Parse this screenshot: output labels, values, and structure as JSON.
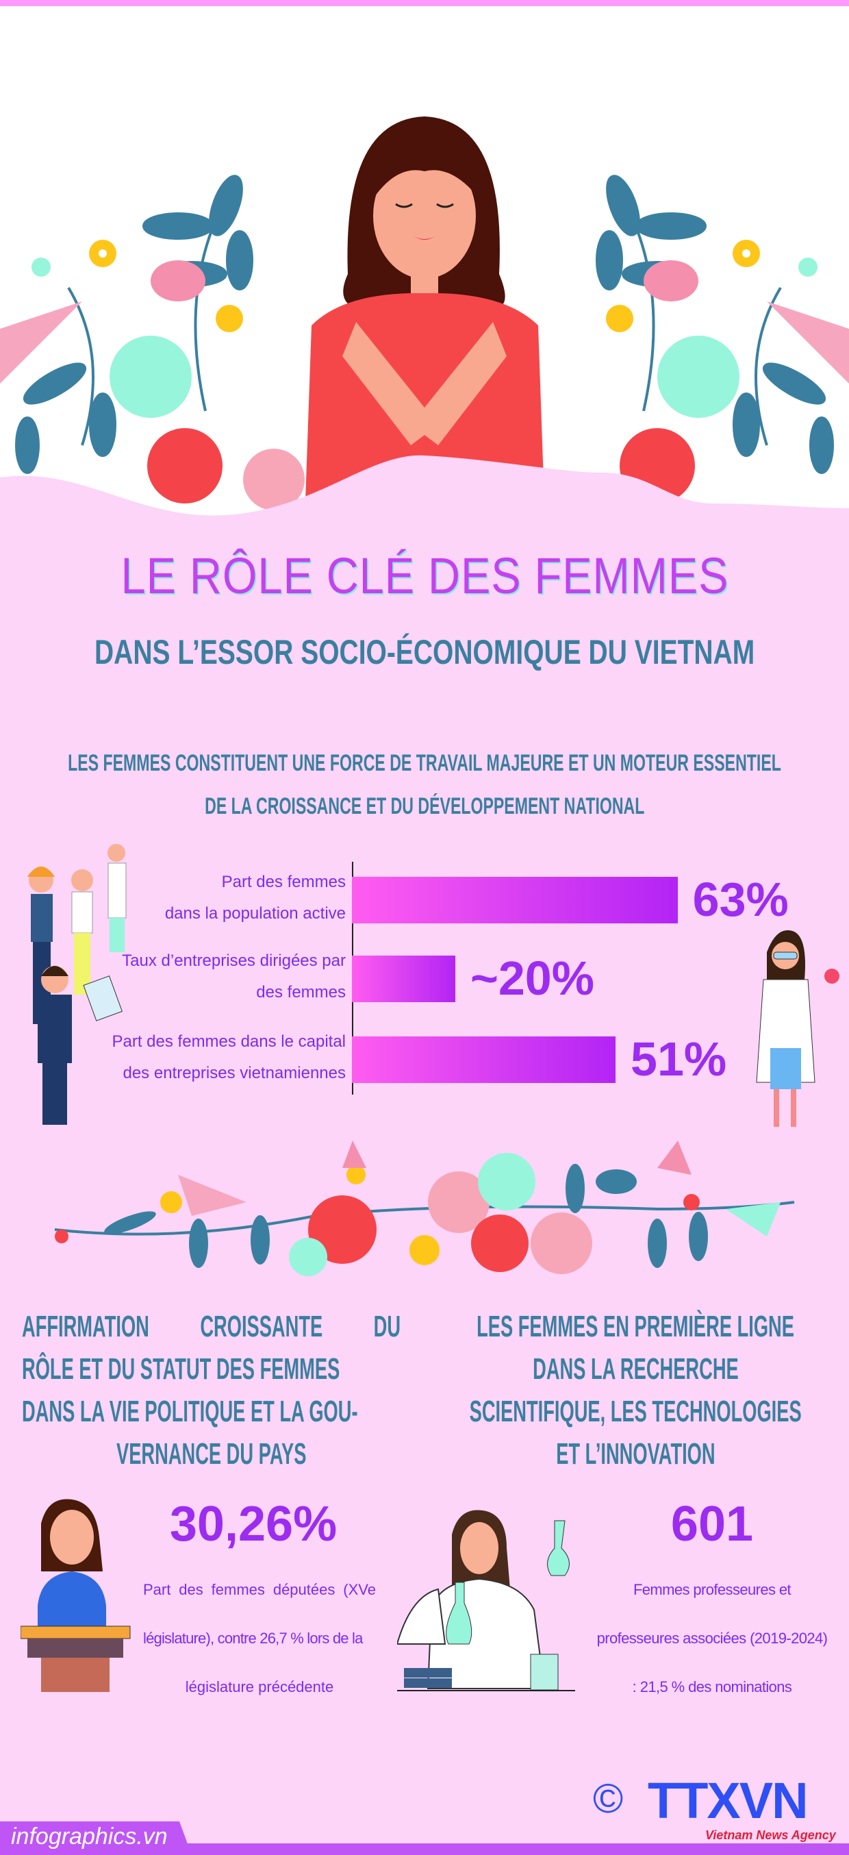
{
  "header": {
    "title": "LE RÔLE CLÉ DES FEMMES",
    "subtitle": "DANS L’ESSOR SOCIO-ÉCONOMIQUE DU VIETNAM"
  },
  "section1": {
    "heading_line1": "LES FEMMES CONSTITUENT UNE FORCE DE TRAVAIL MAJEURE ET UN MOTEUR ESSENTIEL",
    "heading_line2": "DE LA CROISSANCE ET DU DÉVELOPPEMENT NATIONAL"
  },
  "chart_data": {
    "type": "bar",
    "orientation": "horizontal",
    "categories": [
      [
        "Part des femmes",
        "dans la population active"
      ],
      [
        "Taux d’entreprises dirigées par",
        "des femmes"
      ],
      [
        "Part des femmes dans le capital",
        "des entreprises vietnamiennes"
      ]
    ],
    "values": [
      63,
      20,
      51
    ],
    "value_labels": [
      "63%",
      "~20%",
      "51%"
    ],
    "unit": "%",
    "colors": {
      "bar_start": "#ff5cf0",
      "bar_end": "#b324f5",
      "label": "#9b2cf0"
    }
  },
  "section2": {
    "left_heading": [
      "AFFIRMATION CROISSANTE DU",
      "RÔLE ET DU STATUT DES FEMMES",
      "DANS LA VIE POLITIQUE ET LA GOU-",
      "VERNANCE DU PAYS"
    ],
    "left_value": "30,26%",
    "left_text": [
      "Part des femmes députées (XVe",
      "législature), contre 26,7 % lors de la",
      "législature précédente"
    ],
    "right_heading": [
      "LES FEMMES EN PREMIÈRE LIGNE",
      "DANS LA RECHERCHE",
      "SCIENTIFIQUE, LES TECHNOLOGIES",
      "ET L’INNOVATION"
    ],
    "right_value": "601",
    "right_text": [
      "Femmes professeures et",
      "professeures associées (2019-2024)",
      ": 21,5 % des nominations"
    ]
  },
  "footer": {
    "site": "infographics.vn",
    "copyright": "©",
    "logo": "TTXVN",
    "agency": "Vietnam News Agency"
  },
  "colors": {
    "background": "#fcd5f8",
    "teal": "#3a7fa0",
    "purple": "#9b2cf0",
    "title": "#c640f0"
  }
}
